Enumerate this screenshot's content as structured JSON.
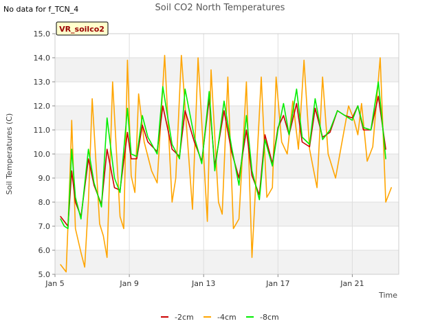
{
  "page": {
    "no_data_note": "No data for f_TCN_4"
  },
  "chart_data": {
    "type": "line",
    "title": "Soil CO2 North Temperatures",
    "xlabel": "Time",
    "ylabel": "Soil Temperatures (C)",
    "station_label": "VR_soilco2",
    "x_range_days": [
      5,
      23.5
    ],
    "ylim": [
      5.0,
      15.0
    ],
    "x_ticks": [
      {
        "day": 5,
        "label": "Jan 5"
      },
      {
        "day": 9,
        "label": "Jan 9"
      },
      {
        "day": 13,
        "label": "Jan 13"
      },
      {
        "day": 17,
        "label": "Jan 17"
      },
      {
        "day": 21,
        "label": "Jan 21"
      }
    ],
    "y_ticks": [
      5.0,
      6.0,
      7.0,
      8.0,
      9.0,
      10.0,
      11.0,
      12.0,
      13.0,
      14.0,
      15.0
    ],
    "y_tick_labels": [
      "5.0",
      "6.0",
      "7.0",
      "8.0",
      "9.0",
      "10.0",
      "11.0",
      "12.0",
      "13.0",
      "14.0",
      "15.0"
    ],
    "grid": true,
    "legend_position": "bottom",
    "series": [
      {
        "name": "-2cm",
        "color": "#cc0000",
        "x": [
          5.3,
          5.5,
          5.7,
          5.9,
          6.1,
          6.4,
          6.8,
          7.1,
          7.5,
          7.8,
          8.2,
          8.5,
          8.9,
          9.1,
          9.4,
          9.7,
          10.0,
          10.5,
          10.8,
          11.3,
          11.7,
          12.0,
          12.5,
          12.9,
          13.3,
          13.6,
          14.1,
          14.5,
          14.9,
          15.3,
          15.6,
          16.0,
          16.3,
          16.7,
          17.0,
          17.3,
          17.6,
          18.0,
          18.3,
          18.7,
          19.0,
          19.4,
          19.8,
          20.2,
          20.6,
          21.0,
          21.3,
          21.6,
          22.0,
          22.4,
          22.8
        ],
        "values": [
          7.4,
          7.2,
          7.0,
          9.3,
          8.0,
          7.4,
          9.8,
          8.7,
          7.9,
          10.2,
          8.6,
          8.5,
          10.9,
          9.8,
          9.8,
          11.2,
          10.5,
          10.1,
          12.0,
          10.2,
          9.9,
          11.8,
          10.5,
          9.7,
          12.3,
          9.5,
          11.8,
          10.1,
          9.0,
          11.0,
          9.1,
          8.3,
          10.8,
          9.6,
          11.1,
          11.6,
          10.8,
          12.1,
          10.5,
          10.3,
          11.9,
          10.7,
          10.9,
          11.8,
          11.6,
          11.5,
          12.0,
          11.0,
          11.0,
          12.4,
          10.2
        ]
      },
      {
        "name": "-4cm",
        "color": "#ffa500",
        "x": [
          5.3,
          5.6,
          5.8,
          5.9,
          6.1,
          6.4,
          6.6,
          6.8,
          7.0,
          7.4,
          7.6,
          7.8,
          8.1,
          8.5,
          8.7,
          8.9,
          9.1,
          9.3,
          9.5,
          9.8,
          10.2,
          10.5,
          10.9,
          11.3,
          11.5,
          11.8,
          12.1,
          12.4,
          12.7,
          12.9,
          13.2,
          13.4,
          13.8,
          14.0,
          14.3,
          14.6,
          14.9,
          15.3,
          15.6,
          16.1,
          16.4,
          16.7,
          16.9,
          17.2,
          17.5,
          17.8,
          18.1,
          18.4,
          18.7,
          19.1,
          19.4,
          19.7,
          20.1,
          20.4,
          20.8,
          21.1,
          21.3,
          21.5,
          21.8,
          22.1,
          22.5,
          22.8,
          23.1
        ],
        "values": [
          5.4,
          5.1,
          9.0,
          11.4,
          6.9,
          5.9,
          5.3,
          8.0,
          12.3,
          7.1,
          6.6,
          5.7,
          13.0,
          7.4,
          6.9,
          13.9,
          9.1,
          8.4,
          12.5,
          10.5,
          9.3,
          8.8,
          14.1,
          8.0,
          9.0,
          14.1,
          10.9,
          7.7,
          14.0,
          11.3,
          7.2,
          13.5,
          8.0,
          7.5,
          13.2,
          6.9,
          7.3,
          13.0,
          5.7,
          13.2,
          8.2,
          8.6,
          13.2,
          10.5,
          10.0,
          12.2,
          10.2,
          13.9,
          10.2,
          8.6,
          13.2,
          10.0,
          9.0,
          10.3,
          12.0,
          11.4,
          10.8,
          12.1,
          9.7,
          10.3,
          14.0,
          8.0,
          8.6
        ]
      },
      {
        "name": "-8cm",
        "color": "#00ee00",
        "x": [
          5.3,
          5.5,
          5.7,
          5.9,
          6.1,
          6.4,
          6.8,
          7.1,
          7.5,
          7.8,
          8.2,
          8.5,
          8.9,
          9.1,
          9.4,
          9.7,
          10.0,
          10.5,
          10.8,
          11.3,
          11.7,
          12.0,
          12.5,
          12.9,
          13.3,
          13.6,
          14.1,
          14.5,
          14.9,
          15.3,
          15.6,
          16.0,
          16.3,
          16.7,
          17.0,
          17.3,
          17.6,
          18.0,
          18.3,
          18.7,
          19.0,
          19.4,
          19.8,
          20.2,
          20.6,
          21.0,
          21.3,
          21.6,
          22.0,
          22.4,
          22.8
        ],
        "values": [
          7.3,
          7.0,
          6.9,
          10.2,
          8.2,
          7.3,
          10.2,
          8.8,
          7.8,
          11.5,
          9.0,
          8.4,
          11.9,
          10.0,
          9.9,
          11.6,
          10.7,
          10.0,
          12.8,
          10.4,
          9.8,
          12.7,
          10.7,
          9.6,
          12.6,
          9.3,
          12.2,
          10.3,
          8.7,
          11.6,
          9.3,
          8.1,
          10.6,
          9.5,
          11.0,
          12.1,
          10.8,
          12.7,
          10.7,
          10.4,
          12.3,
          10.6,
          11.0,
          11.8,
          11.6,
          11.4,
          12.0,
          11.1,
          11.0,
          13.0,
          9.8
        ]
      }
    ]
  }
}
